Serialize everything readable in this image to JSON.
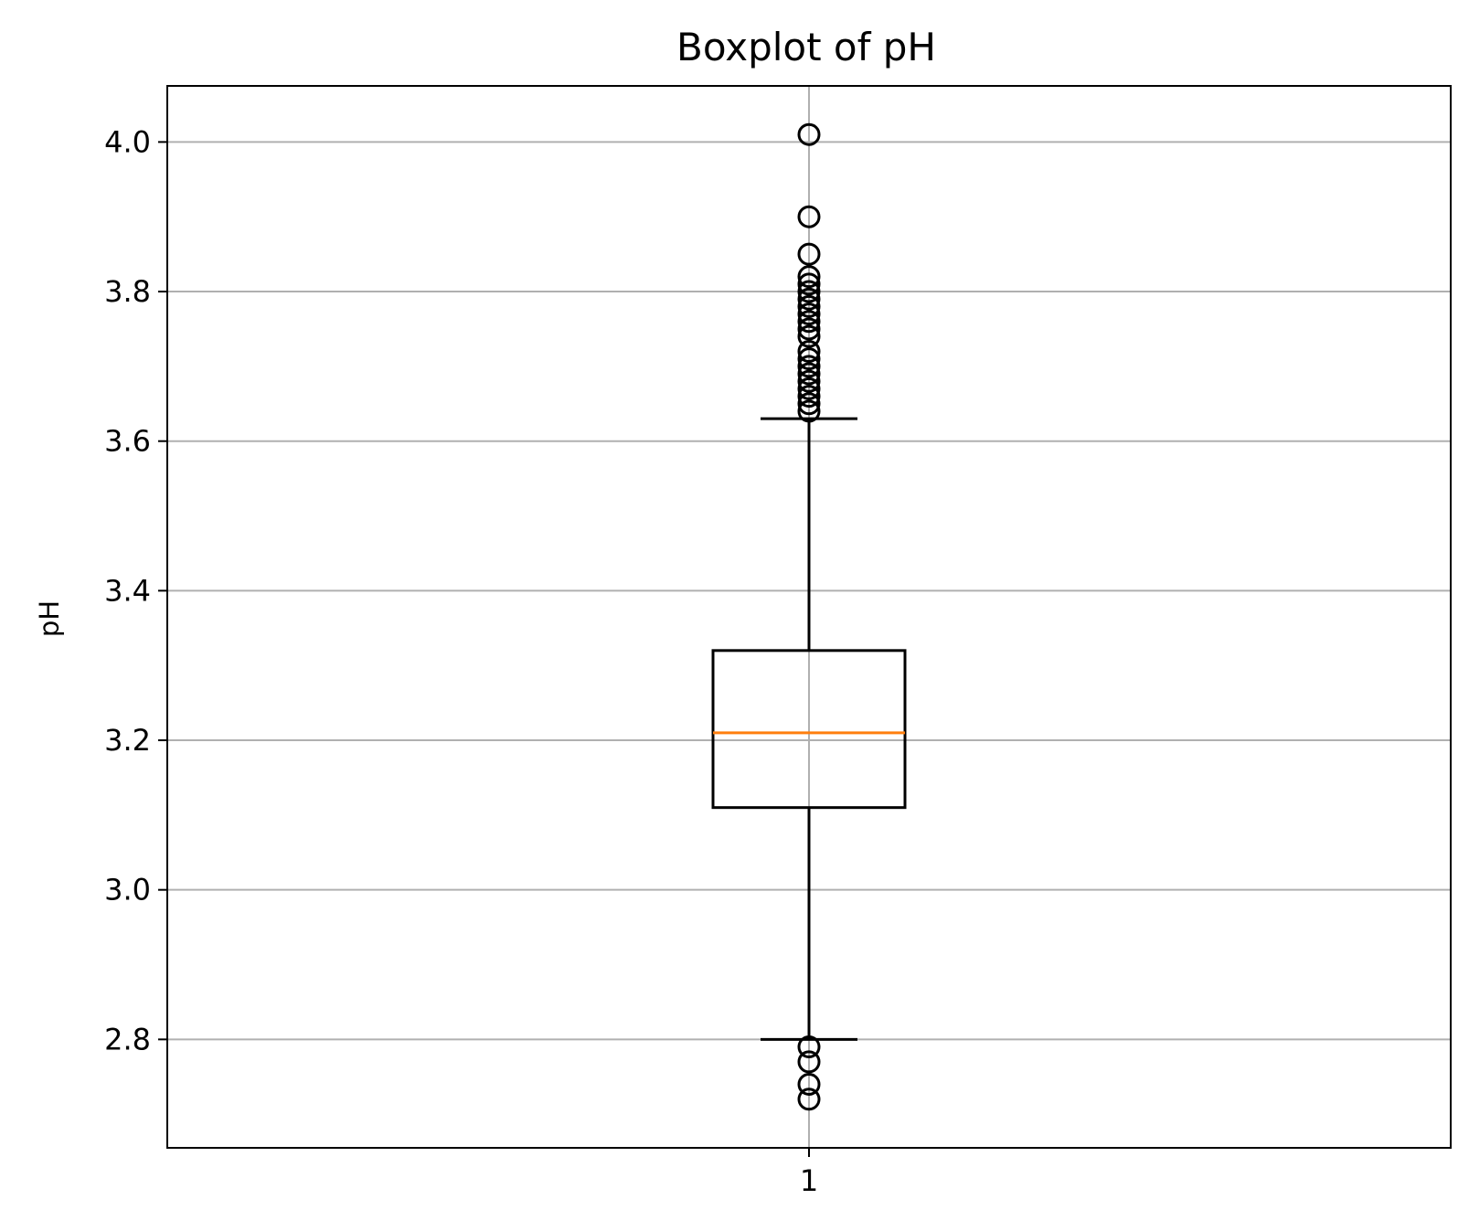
{
  "chart_data": {
    "type": "box",
    "title": "Boxplot of pH",
    "xlabel": "",
    "ylabel": "pH",
    "categories": [
      "1"
    ],
    "ylim": [
      2.655,
      4.075
    ],
    "yticks": [
      2.8,
      3.0,
      3.2,
      3.4,
      3.6,
      3.8,
      4.0
    ],
    "ytick_labels": [
      "2.8",
      "3.0",
      "3.2",
      "3.4",
      "3.6",
      "3.8",
      "4.0"
    ],
    "grid": true,
    "boxes": [
      {
        "category": "1",
        "whisker_low": 2.8,
        "q1": 3.11,
        "median": 3.21,
        "q3": 3.32,
        "whisker_high": 3.63,
        "outliers": [
          2.72,
          2.74,
          2.77,
          2.79,
          3.64,
          3.65,
          3.66,
          3.67,
          3.68,
          3.69,
          3.7,
          3.71,
          3.72,
          3.74,
          3.75,
          3.76,
          3.77,
          3.78,
          3.79,
          3.8,
          3.81,
          3.82,
          3.85,
          3.9,
          4.01
        ]
      }
    ],
    "colors": {
      "box": "#000000",
      "median": "#ff7f0e",
      "grid": "#b0b0b0",
      "outlier_edge": "#000000"
    }
  }
}
